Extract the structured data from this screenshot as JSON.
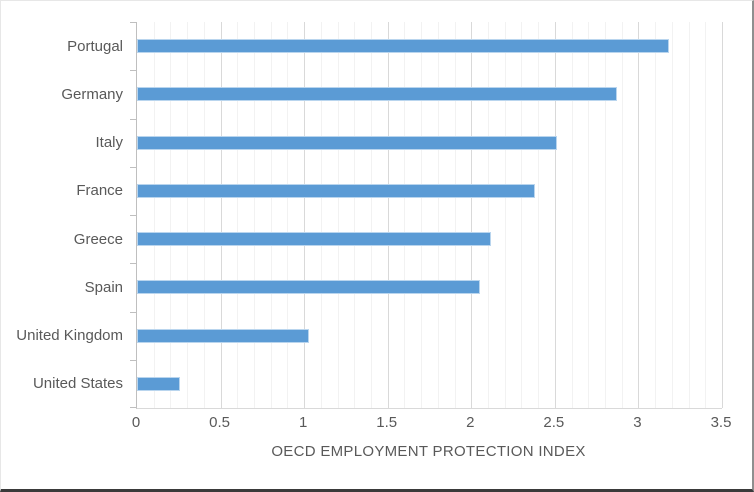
{
  "chart_data": {
    "type": "bar",
    "orientation": "horizontal",
    "title": "",
    "xlabel": "OECD EMPLOYMENT PROTECTION INDEX",
    "ylabel": "",
    "categories": [
      "Portugal",
      "Germany",
      "Italy",
      "France",
      "Greece",
      "Spain",
      "United Kingdom",
      "United States"
    ],
    "values": [
      3.18,
      2.87,
      2.51,
      2.38,
      2.12,
      2.05,
      1.03,
      0.26
    ],
    "xlim": [
      0,
      3.5
    ],
    "x_tick_labels": [
      "0",
      "0.5",
      "1",
      "1.5",
      "2",
      "2.5",
      "3",
      "3.5"
    ],
    "x_major_step": 0.5,
    "x_minor_step": 0.1,
    "grid": "on",
    "legend": "none"
  },
  "colors": {
    "bar_fill": "#5B9BD5",
    "bar_edge": "#B9D5EE",
    "grid_major": "#D9D9D9",
    "grid_minor": "#F2F2F2",
    "axis_line": "#BFBFBF",
    "text": "#595959"
  }
}
